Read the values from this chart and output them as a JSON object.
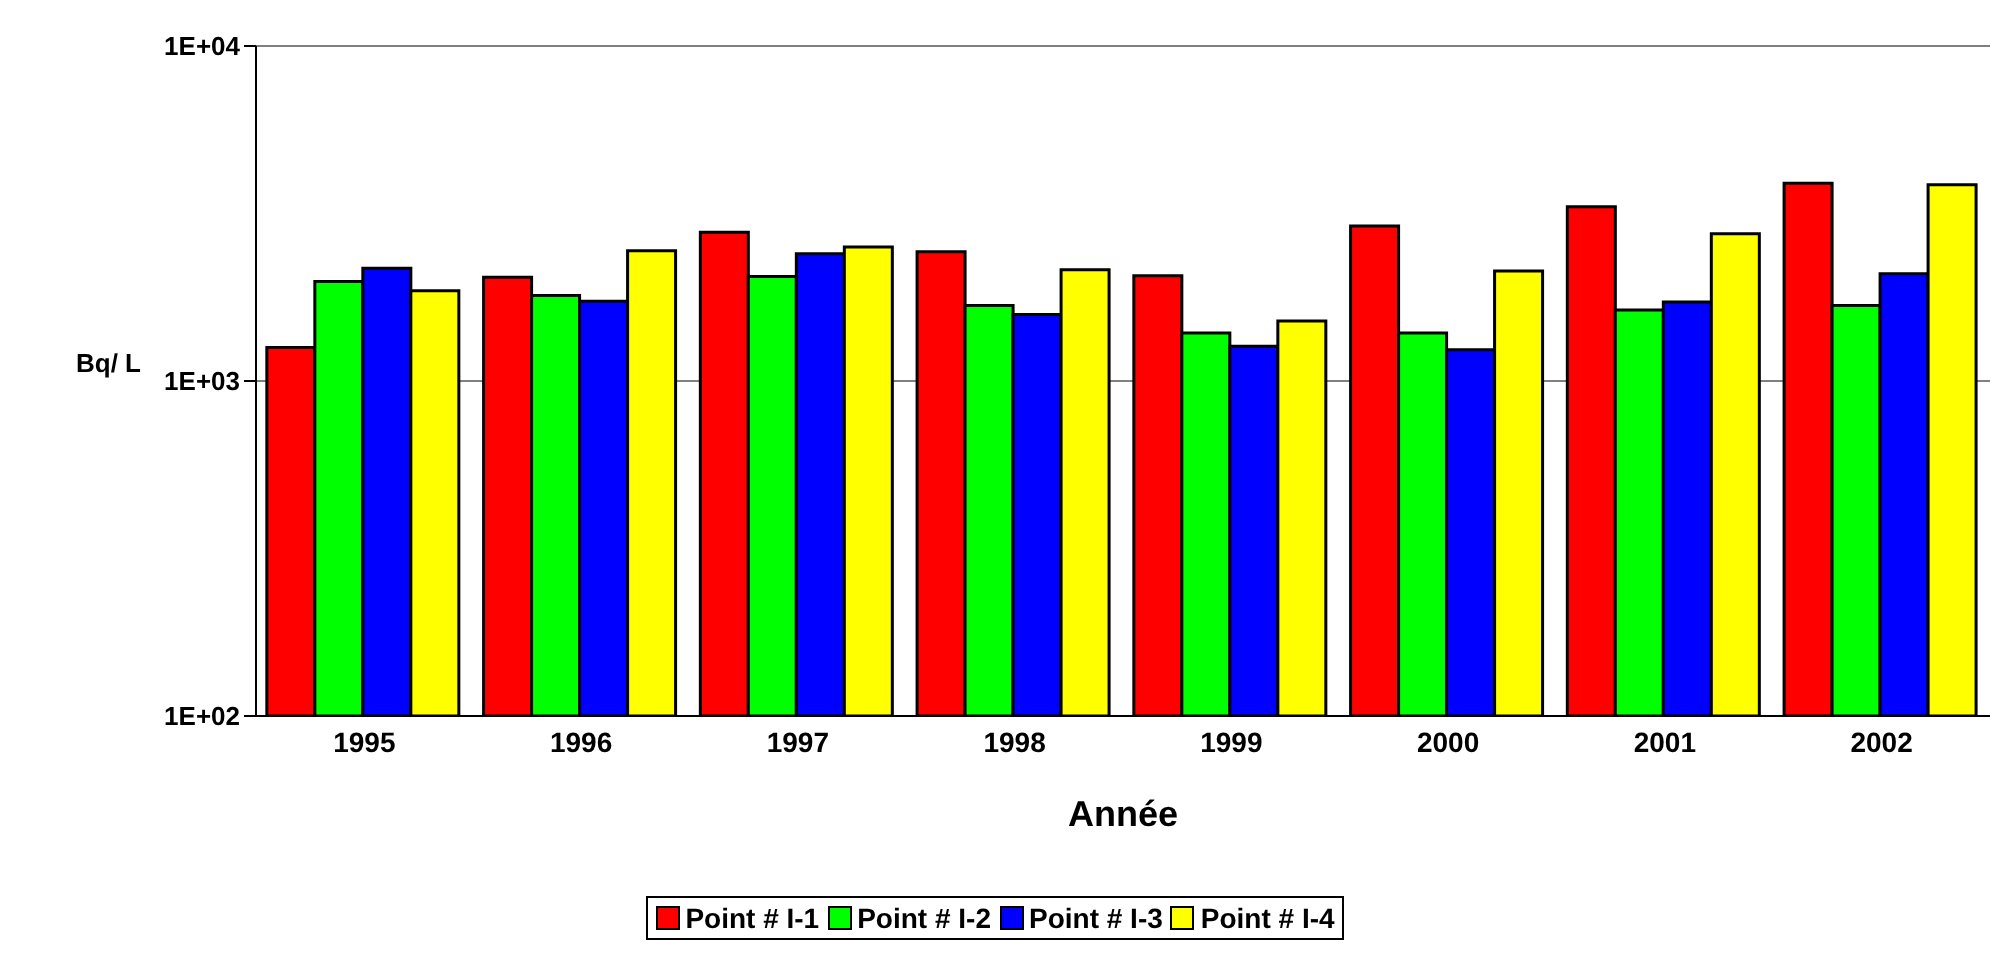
{
  "chart_data": {
    "type": "bar",
    "xlabel": "Année",
    "ylabel": "Bq/ L",
    "categories": [
      "1995",
      "1996",
      "1997",
      "1998",
      "1999",
      "2000",
      "2001",
      "2002"
    ],
    "series": [
      {
        "name": "Point # I-1",
        "color": "#ff0000",
        "values": [
          1260,
          2040,
          2780,
          2430,
          2060,
          2900,
          3310,
          3890
        ]
      },
      {
        "name": "Point # I-2",
        "color": "#00ff00",
        "values": [
          1980,
          1800,
          2050,
          1680,
          1390,
          1390,
          1630,
          1680
        ]
      },
      {
        "name": "Point # I-3",
        "color": "#0000ff",
        "values": [
          2170,
          1730,
          2400,
          1580,
          1270,
          1240,
          1720,
          2090
        ]
      },
      {
        "name": "Point # I-4",
        "color": "#ffff00",
        "values": [
          1860,
          2450,
          2510,
          2150,
          1510,
          2130,
          2750,
          3850
        ]
      }
    ],
    "log": "y",
    "ylim": [
      100,
      10000
    ],
    "yticks": [
      {
        "value": 100,
        "label": "1E+02"
      },
      {
        "value": 1000,
        "label": "1E+03"
      },
      {
        "value": 10000,
        "label": "1E+04"
      }
    ],
    "grid": "y",
    "legend": "bottom"
  }
}
